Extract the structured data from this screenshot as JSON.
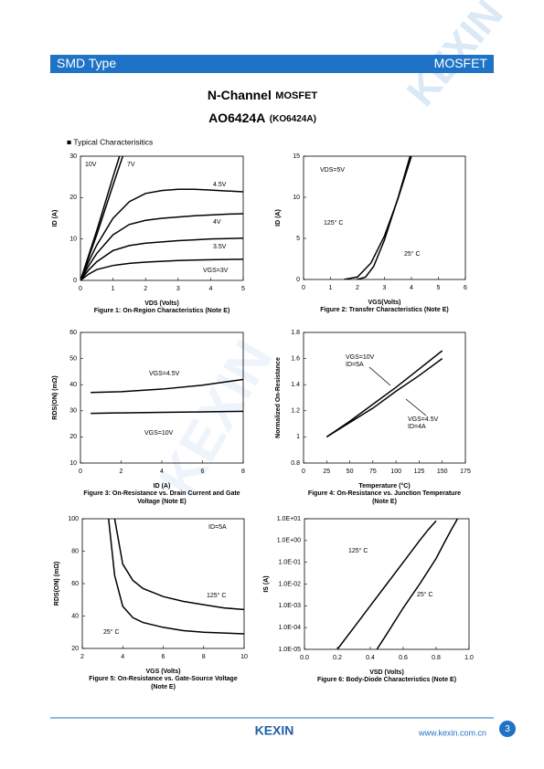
{
  "header": {
    "left": "SMD Type",
    "right": "MOSFET"
  },
  "watermark": "KEXIN",
  "title": [
    "N-Channel",
    "MOSFET"
  ],
  "part": [
    "AO6424A",
    "(KO6424A)"
  ],
  "section": "■  Typical  Characterisitics",
  "chart_data": [
    {
      "type": "line",
      "xlabel": "VDS (Volts)",
      "ylabel": "ID (A)",
      "caption": [
        "Figure 1: On-Region Characteristics (Note E)"
      ],
      "xlim": [
        0,
        5
      ],
      "xticks": [
        0,
        1,
        2,
        3,
        4,
        5
      ],
      "ylim": [
        0,
        30
      ],
      "yticks": [
        0,
        10,
        20,
        30
      ],
      "annotations": [],
      "series": [
        {
          "name": "10V",
          "color": "#000000",
          "x": [
            0,
            0.5,
            1,
            1.2
          ],
          "values": [
            0,
            12,
            25,
            30
          ]
        },
        {
          "name": "7V",
          "color": "#000000",
          "x": [
            0,
            0.5,
            1,
            1.3
          ],
          "values": [
            0,
            11,
            23,
            30
          ]
        },
        {
          "name": "4.5V",
          "color": "#000000",
          "x": [
            0,
            0.25,
            0.5,
            1,
            1.5,
            2,
            2.5,
            3,
            3.5,
            4,
            4.5,
            5
          ],
          "values": [
            0,
            4.5,
            8.5,
            15,
            19,
            21,
            21.7,
            22,
            22,
            21.8,
            21.6,
            21.4
          ]
        },
        {
          "name": "4V",
          "color": "#000000",
          "x": [
            0,
            0.25,
            0.5,
            1,
            1.5,
            2,
            2.5,
            3,
            3.5,
            4,
            4.5,
            5
          ],
          "values": [
            0,
            3.5,
            6.5,
            11,
            13.5,
            14.5,
            15,
            15.3,
            15.6,
            15.8,
            16,
            16.1
          ]
        },
        {
          "name": "3.5V",
          "color": "#000000",
          "x": [
            0,
            0.25,
            0.5,
            1,
            1.5,
            2,
            2.5,
            3,
            3.5,
            4,
            4.5,
            5
          ],
          "values": [
            0,
            2.5,
            4.5,
            7.2,
            8.4,
            9,
            9.3,
            9.6,
            9.8,
            10,
            10.1,
            10.2
          ]
        },
        {
          "name": "VGS=3V",
          "color": "#000000",
          "x": [
            0,
            0.25,
            0.5,
            1,
            1.5,
            2,
            2.5,
            3,
            3.5,
            4,
            4.5,
            5
          ],
          "values": [
            0,
            1.5,
            2.6,
            3.6,
            4.1,
            4.4,
            4.6,
            4.8,
            4.9,
            5,
            5.05,
            5.1
          ]
        }
      ]
    },
    {
      "type": "line",
      "xlabel": "VGS(Volts)",
      "ylabel": "ID (A)",
      "caption": [
        "Figure 2: Transfer Characteristics (Note E)"
      ],
      "xlim": [
        0,
        6
      ],
      "xticks": [
        0,
        1,
        2,
        3,
        4,
        5,
        6
      ],
      "ylim": [
        0,
        15
      ],
      "yticks": [
        0,
        5,
        10,
        15
      ],
      "annotations": [
        "VDS=5V"
      ],
      "series": [
        {
          "name": "125° C",
          "color": "#000000",
          "x": [
            1.5,
            2,
            2.5,
            3,
            3.5,
            4
          ],
          "values": [
            0,
            0.3,
            2,
            5.3,
            9.8,
            15
          ]
        },
        {
          "name": "25° C",
          "color": "#000000",
          "x": [
            2,
            2.3,
            2.6,
            3,
            3.5,
            3.95
          ],
          "values": [
            0,
            0.3,
            1.6,
            4.8,
            9.9,
            15
          ]
        }
      ]
    },
    {
      "type": "line",
      "xlabel": "ID (A)",
      "ylabel": "RDS(ON) (mΩ)",
      "caption": [
        "Figure 3: On-Resistance vs. Drain Current and Gate",
        "Voltage (Note E)"
      ],
      "xlim": [
        0,
        8
      ],
      "xticks": [
        0,
        2,
        4,
        6,
        8
      ],
      "ylim": [
        10,
        60
      ],
      "yticks": [
        10,
        20,
        30,
        40,
        50,
        60
      ],
      "annotations": [],
      "series": [
        {
          "name": "VGS=4.5V",
          "color": "#000000",
          "x": [
            0.5,
            2,
            4,
            6,
            8
          ],
          "values": [
            37,
            37.3,
            38.3,
            39.8,
            42
          ]
        },
        {
          "name": "VGS=10V",
          "color": "#000000",
          "x": [
            0.5,
            2,
            4,
            6,
            8
          ],
          "values": [
            29,
            29.2,
            29.4,
            29.6,
            29.8
          ]
        }
      ]
    },
    {
      "type": "line",
      "xlabel": "Temperature (°C)",
      "ylabel": "Normalized On-Resistance",
      "caption": [
        "Figure 4: On-Resistance vs. Junction Temperature",
        "(Note E)"
      ],
      "xlim": [
        0,
        175
      ],
      "xticks": [
        0,
        25,
        50,
        75,
        100,
        125,
        150,
        175
      ],
      "ylim": [
        0.8,
        1.8
      ],
      "yticks": [
        0.8,
        1,
        1.2,
        1.4,
        1.6,
        1.8
      ],
      "annotations": [],
      "series": [
        {
          "name": "VGS=10V",
          "note": "ID=5A",
          "color": "#000000",
          "x": [
            25,
            50,
            75,
            100,
            125,
            150
          ],
          "values": [
            1,
            1.12,
            1.25,
            1.38,
            1.52,
            1.66
          ]
        },
        {
          "name": "VGS=4.5V",
          "note": "ID=4A",
          "color": "#000000",
          "x": [
            25,
            50,
            75,
            100,
            125,
            150
          ],
          "values": [
            1,
            1.11,
            1.22,
            1.35,
            1.47,
            1.6
          ]
        }
      ]
    },
    {
      "type": "line",
      "xlabel": "VGS (Volts)",
      "ylabel": "RDS(ON) (mΩ)",
      "caption": [
        "Figure 5: On-Resistance vs. Gate-Source Voltage",
        "(Note E)"
      ],
      "xlim": [
        2,
        10
      ],
      "xticks": [
        2,
        4,
        6,
        8,
        10
      ],
      "ylim": [
        20,
        100
      ],
      "yticks": [
        20,
        40,
        60,
        80,
        100
      ],
      "annotations": [
        "ID=5A"
      ],
      "series": [
        {
          "name": "125° C",
          "color": "#000000",
          "x": [
            3.6,
            4,
            4.5,
            5,
            6,
            7,
            8,
            9,
            10
          ],
          "values": [
            100,
            72,
            62,
            57,
            52,
            49,
            47,
            45,
            44
          ]
        },
        {
          "name": "25° C",
          "color": "#000000",
          "x": [
            3.3,
            3.6,
            4,
            4.5,
            5,
            6,
            7,
            8,
            9,
            10
          ],
          "values": [
            100,
            65,
            46,
            39,
            36,
            33,
            31,
            30,
            29.5,
            29
          ]
        }
      ]
    },
    {
      "type": "line",
      "xlabel": "VSD (Volts)",
      "ylabel": "IS (A)",
      "caption": [
        "Figure 6: Body-Diode Characteristics (Note E)"
      ],
      "ylog": true,
      "xlim": [
        0,
        1
      ],
      "xticks": [
        {
          "value": 0,
          "label": "0.0"
        },
        0.2,
        0.4,
        0.6,
        0.8,
        {
          "value": 1,
          "label": "1.0"
        }
      ],
      "ylim": [
        1e-05,
        10
      ],
      "yticks": [
        {
          "value": 1e-05,
          "label": "1.0E-05"
        },
        {
          "value": 0.0001,
          "label": "1.0E-04"
        },
        {
          "value": 0.001,
          "label": "1.0E-03"
        },
        {
          "value": 0.01,
          "label": "1.0E-02"
        },
        {
          "value": 0.1,
          "label": "1.0E-01"
        },
        {
          "value": 1,
          "label": "1.0E+00"
        },
        {
          "value": 10,
          "label": "1.0E+01"
        }
      ],
      "annotations": [],
      "series": [
        {
          "name": "125° C",
          "color": "#000000",
          "x": [
            0.2,
            0.3,
            0.4,
            0.5,
            0.6,
            0.7,
            0.75,
            0.8
          ],
          "values": [
            1e-05,
            0.0001,
            0.001,
            0.01,
            0.1,
            1,
            3,
            8
          ]
        },
        {
          "name": "25° C",
          "color": "#000000",
          "x": [
            0.44,
            0.5,
            0.6,
            0.7,
            0.8,
            0.85,
            0.9,
            0.93
          ],
          "values": [
            1e-05,
            5e-05,
            0.0008,
            0.01,
            0.15,
            0.8,
            4,
            10
          ]
        }
      ]
    }
  ],
  "footer": {
    "logo": "KEXIN",
    "url": "www.kexin.com.cn",
    "page": "3"
  }
}
